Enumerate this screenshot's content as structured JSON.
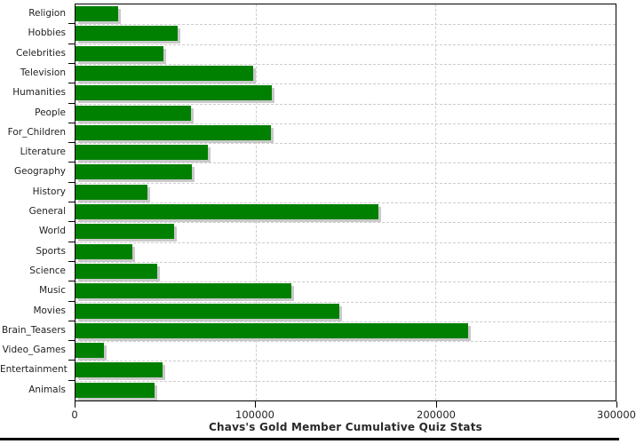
{
  "chart_data": {
    "type": "bar",
    "orientation": "horizontal",
    "title": "Chavs's Gold Member Cumulative Quiz Stats",
    "categories": [
      "Religion",
      "Hobbies",
      "Celebrities",
      "Television",
      "Humanities",
      "People",
      "For_Children",
      "Literature",
      "Geography",
      "History",
      "General",
      "World",
      "Sports",
      "Science",
      "Music",
      "Movies",
      "Brain_Teasers",
      "Video_Games",
      "Entertainment",
      "Animals"
    ],
    "values": [
      23500,
      56500,
      49000,
      98500,
      109000,
      64000,
      108500,
      73500,
      64500,
      40000,
      168500,
      55000,
      31500,
      45500,
      120000,
      146500,
      218000,
      16000,
      48500,
      44000
    ],
    "xlim": [
      0,
      300000
    ],
    "xticks": [
      0,
      100000,
      200000,
      300000
    ],
    "xtick_labels": [
      "0",
      "100000",
      "200000",
      "300000"
    ],
    "grid": "dashed, at every 100000 vertically and every category boundary horizontally",
    "legend": "none",
    "colors": {
      "bar": "#008000",
      "bar_shadow": "#c9c9c9",
      "grid": "#cccccc",
      "axis": "#000000",
      "title_text": "#2a2a2a",
      "label_text": "#222222",
      "background": "#ffffff"
    }
  }
}
